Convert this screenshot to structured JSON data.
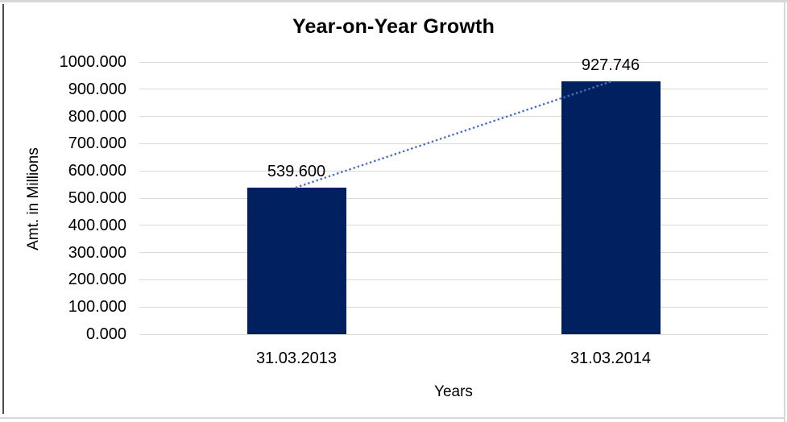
{
  "window": {
    "frame_light_color": "#d8d8d8",
    "frame_dark_color": "#4d4d4d",
    "background_color": "#ffffff",
    "text_color": "#000000"
  },
  "chart_data": {
    "type": "bar",
    "title": "Year-on-Year Growth",
    "xlabel": "Years",
    "ylabel": "Amt. in Millions",
    "categories": [
      "31.03.2013",
      "31.03.2014"
    ],
    "values": [
      539.6,
      927.746
    ],
    "value_labels": [
      "539.600",
      "927.746"
    ],
    "ylim": [
      0,
      1000
    ],
    "ytick_values": [
      0,
      100,
      200,
      300,
      400,
      500,
      600,
      700,
      800,
      900,
      1000
    ],
    "ytick_labels": [
      "0.000",
      "100.000",
      "200.000",
      "300.000",
      "400.000",
      "500.000",
      "600.000",
      "700.000",
      "800.000",
      "900.000",
      "1000.000"
    ],
    "grid": "horizontal",
    "legend": "none",
    "bar_color": "#002060",
    "gridline_color": "#d9d9d9",
    "trendline": {
      "style": "dotted",
      "color": "#4472c4",
      "from": 539.6,
      "to": 927.746
    }
  }
}
